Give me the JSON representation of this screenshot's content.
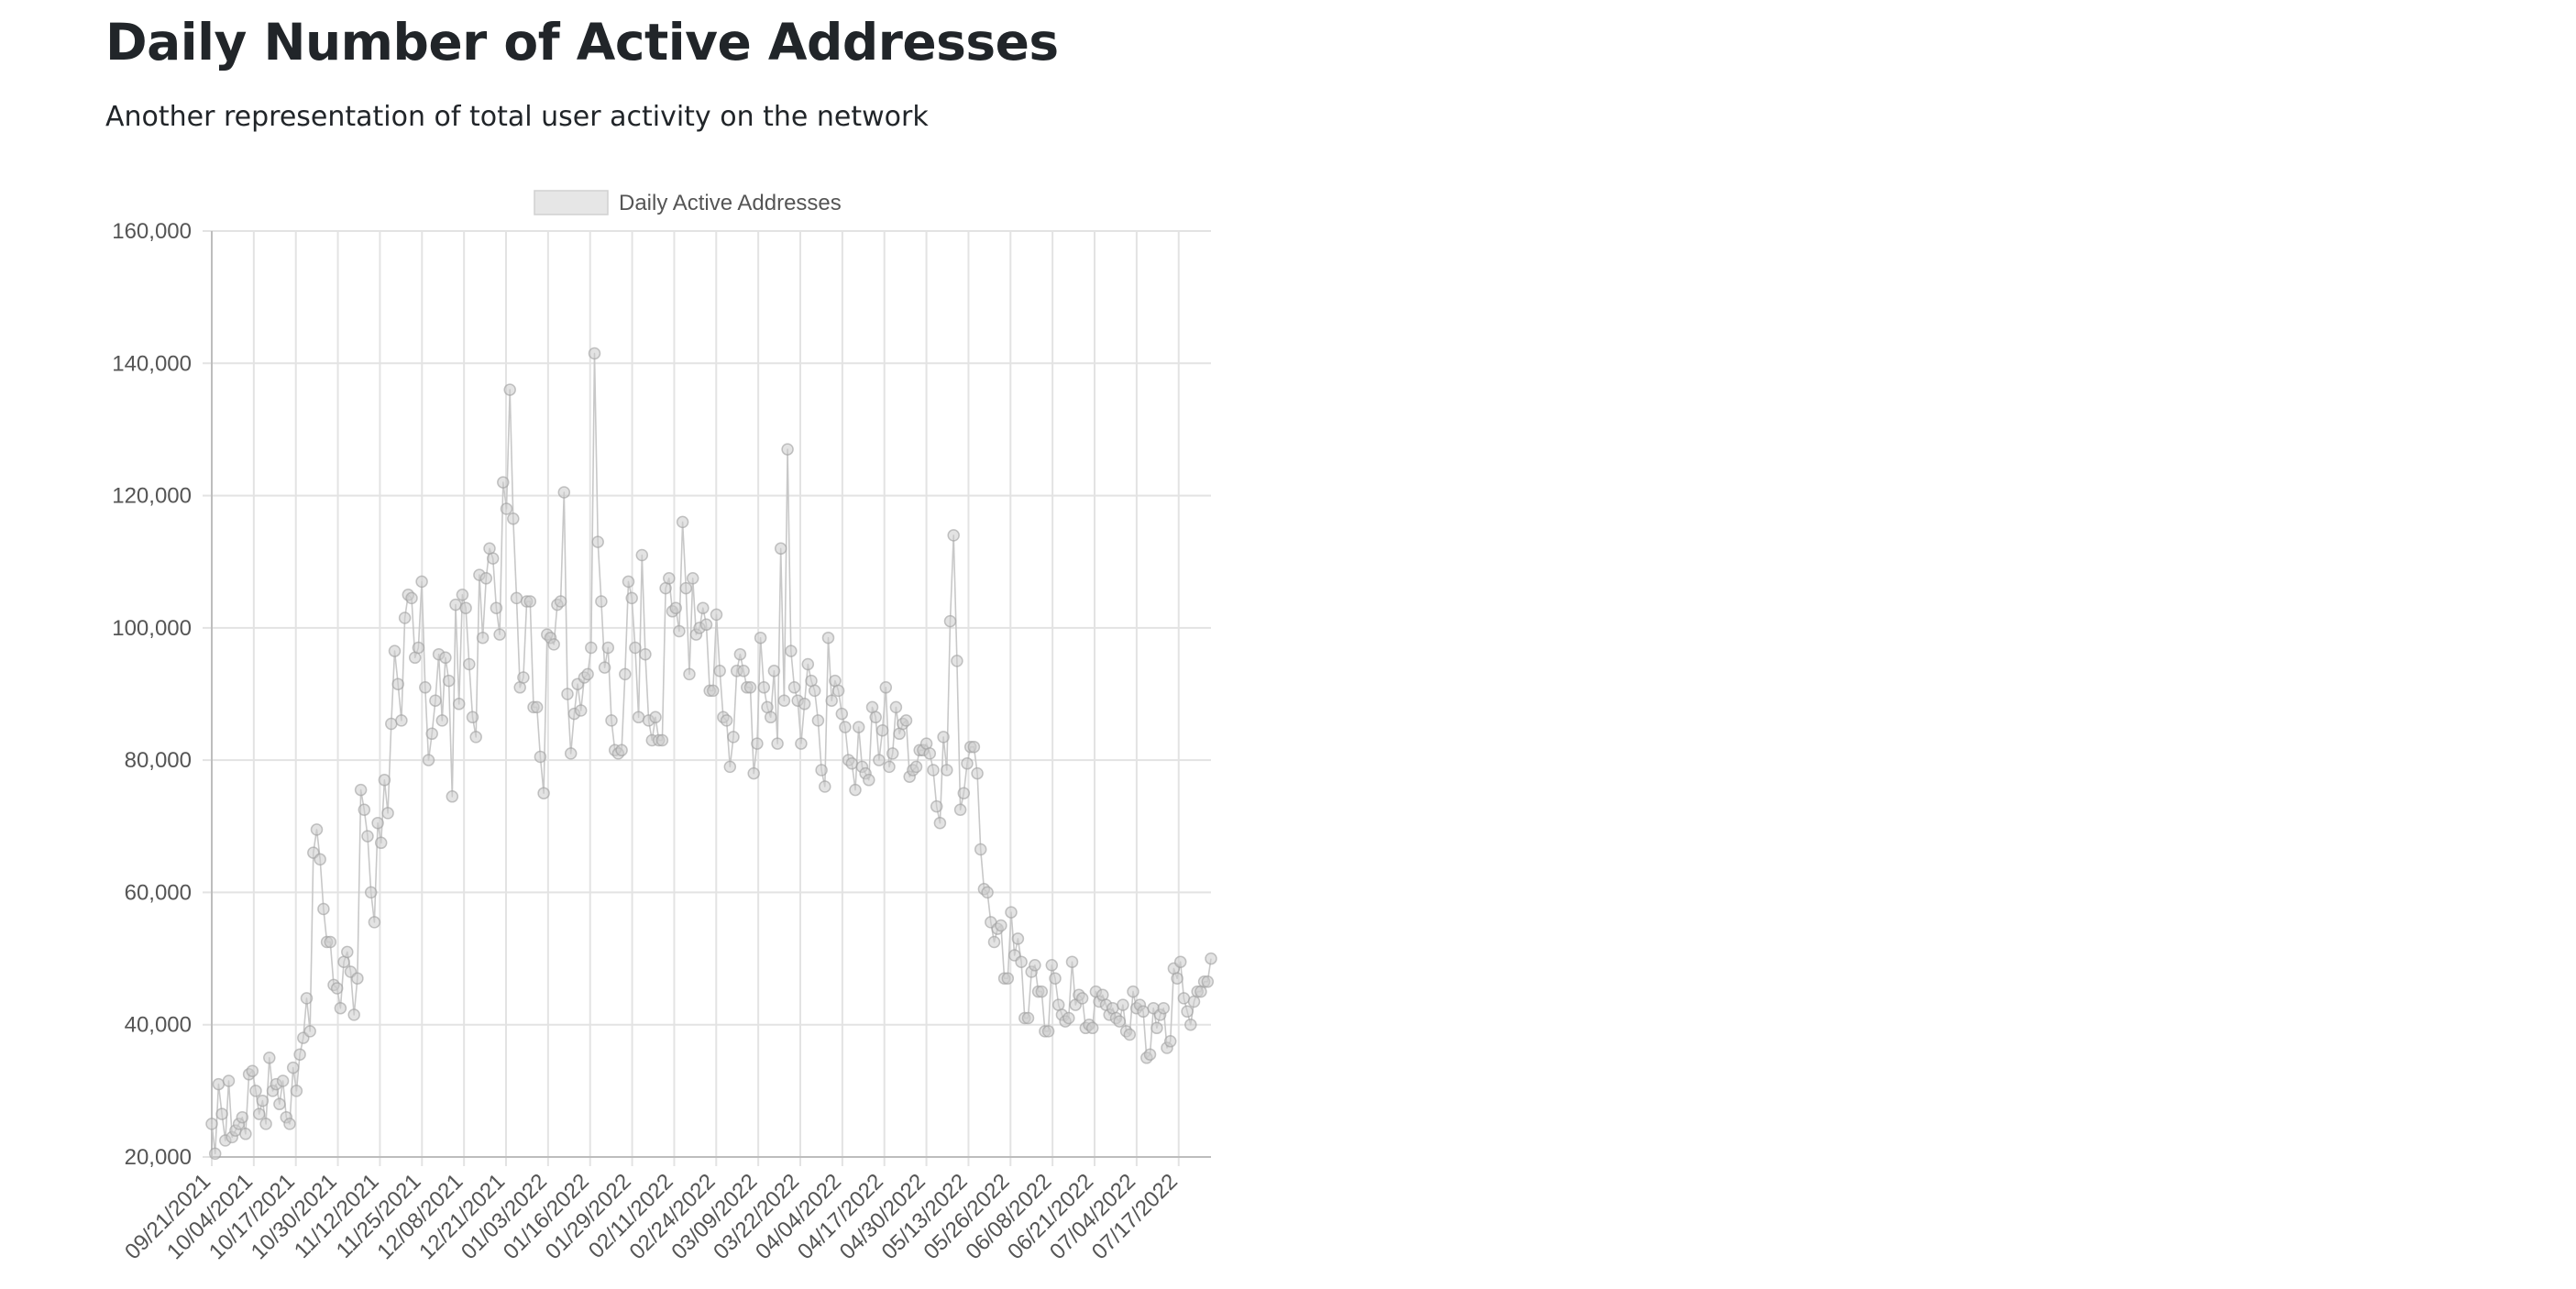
{
  "header": {
    "title": "Daily Number of Active Addresses",
    "subtitle": "Another representation of total user activity on the network"
  },
  "colors": {
    "gridline": "#e3e3e3",
    "axis": "#bdbdbd",
    "series_point_fill": "#cccccc",
    "series_point_stroke": "#9e9e9e",
    "series_line": "#c8c8c8",
    "legend_swatch": "#e6e6e6",
    "text": "#555555"
  },
  "chart_data": {
    "type": "line",
    "title": "",
    "xlabel": "",
    "ylabel": "",
    "ylim": [
      20000,
      160000
    ],
    "y_ticks": [
      20000,
      40000,
      60000,
      80000,
      100000,
      120000,
      140000,
      160000
    ],
    "y_tick_labels": [
      "20,000",
      "40,000",
      "60,000",
      "80,000",
      "100,000",
      "120,000",
      "140,000",
      "160,000"
    ],
    "x_start": "09/21/2021",
    "x_end": "07/27/2022",
    "x_tick_labels": [
      "09/21/2021",
      "10/04/2021",
      "10/17/2021",
      "10/30/2021",
      "11/12/2021",
      "11/25/2021",
      "12/08/2021",
      "12/21/2021",
      "01/03/2022",
      "01/16/2022",
      "01/29/2022",
      "02/11/2022",
      "02/24/2022",
      "03/09/2022",
      "03/22/2022",
      "04/04/2022",
      "04/17/2022",
      "04/30/2022",
      "05/13/2022",
      "05/26/2022",
      "06/08/2022",
      "06/21/2022",
      "07/04/2022",
      "07/17/2022"
    ],
    "grid": true,
    "legend_position": "top-center",
    "series": [
      {
        "name": "Daily Active Addresses",
        "values": [
          25000,
          20500,
          31000,
          26500,
          22500,
          31500,
          23000,
          24000,
          25000,
          26000,
          23500,
          32500,
          33000,
          30000,
          26500,
          28500,
          25000,
          35000,
          30000,
          31000,
          28000,
          31500,
          26000,
          25000,
          33500,
          30000,
          35500,
          38000,
          44000,
          39000,
          66000,
          69500,
          65000,
          57500,
          52500,
          52500,
          46000,
          45500,
          42500,
          49500,
          51000,
          48000,
          41500,
          47000,
          75500,
          72500,
          68500,
          60000,
          55500,
          70500,
          67500,
          77000,
          72000,
          85500,
          96500,
          91500,
          86000,
          101500,
          105000,
          104500,
          95500,
          97000,
          107000,
          91000,
          80000,
          84000,
          89000,
          96000,
          86000,
          95500,
          92000,
          74500,
          103500,
          88500,
          105000,
          103000,
          94500,
          86500,
          83500,
          108000,
          98500,
          107500,
          112000,
          110500,
          103000,
          99000,
          122000,
          118000,
          136000,
          116500,
          104500,
          91000,
          92500,
          104000,
          104000,
          88000,
          88000,
          80500,
          75000,
          99000,
          98500,
          97500,
          103500,
          104000,
          120500,
          90000,
          81000,
          87000,
          91500,
          87500,
          92500,
          93000,
          97000,
          141500,
          113000,
          104000,
          94000,
          97000,
          86000,
          81500,
          81000,
          81500,
          93000,
          107000,
          104500,
          97000,
          86500,
          111000,
          96000,
          86000,
          83000,
          86500,
          83000,
          83000,
          106000,
          107500,
          102500,
          103000,
          99500,
          116000,
          106000,
          93000,
          107500,
          99000,
          100000,
          103000,
          100500,
          90500,
          90500,
          102000,
          93500,
          86500,
          86000,
          79000,
          83500,
          93500,
          96000,
          93500,
          91000,
          91000,
          78000,
          82500,
          98500,
          91000,
          88000,
          86500,
          93500,
          82500,
          112000,
          89000,
          127000,
          96500,
          91000,
          89000,
          82500,
          88500,
          94500,
          92000,
          90500,
          86000,
          78500,
          76000,
          98500,
          89000,
          92000,
          90500,
          87000,
          85000,
          80000,
          79500,
          75500,
          85000,
          79000,
          78000,
          77000,
          88000,
          86500,
          80000,
          84500,
          91000,
          79000,
          81000,
          88000,
          84000,
          85500,
          86000,
          77500,
          78500,
          79000,
          81500,
          81500,
          82500,
          81000,
          78500,
          73000,
          70500,
          83500,
          78500,
          101000,
          114000,
          95000,
          72500,
          75000,
          79500,
          82000,
          82000,
          78000,
          66500,
          60500,
          60000,
          55500,
          52500,
          54500,
          55000,
          47000,
          47000,
          57000,
          50500,
          53000,
          49500,
          41000,
          41000,
          48000,
          49000,
          45000,
          45000,
          39000,
          39000,
          49000,
          47000,
          43000,
          41500,
          40500,
          41000,
          49500,
          43000,
          44500,
          44000,
          39500,
          40000,
          39500,
          45000,
          43500,
          44500,
          43000,
          41500,
          42500,
          41000,
          40500,
          43000,
          39000,
          38500,
          45000,
          42500,
          43000,
          42000,
          35000,
          35500,
          42500,
          39500,
          41500,
          42500,
          36500,
          37500,
          48500,
          47000,
          49500,
          44000,
          42000,
          40000,
          43500,
          45000,
          45000,
          46500,
          46500,
          50000
        ]
      }
    ]
  }
}
